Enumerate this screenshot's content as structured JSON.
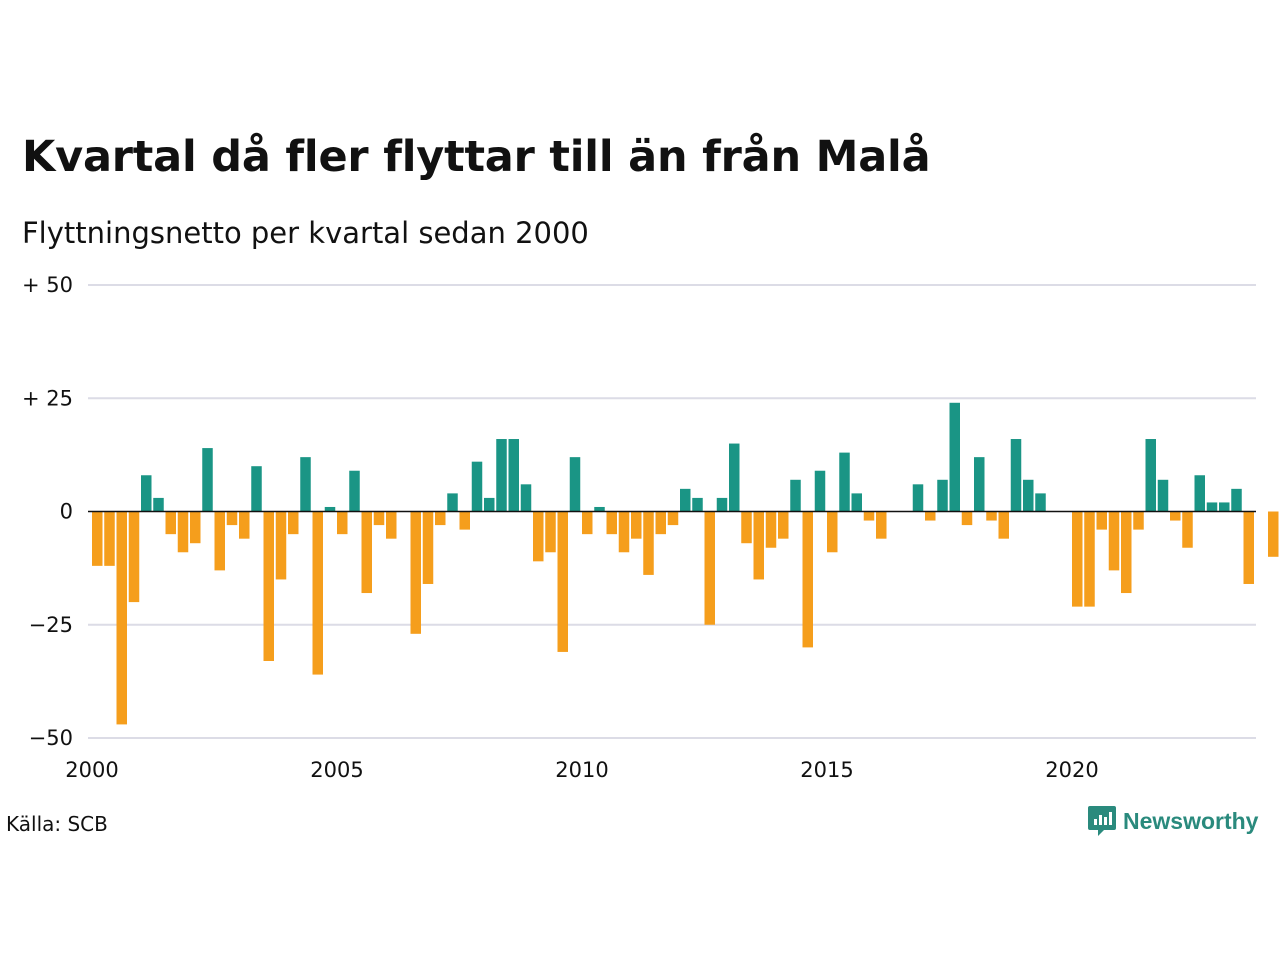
{
  "header": {
    "title": "Kvartal då fler flyttar till än från Malå",
    "subtitle": "Flyttningsnetto per kvartal sedan 2000"
  },
  "footer": {
    "source": "Källa: SCB",
    "brand": "Newsworthy",
    "brand_icon": "newsworthy-logo-icon"
  },
  "colors": {
    "positive": "#1a9585",
    "negative": "#f59e1c",
    "grid": "#dcdce6",
    "brand": "#2a8a7d"
  },
  "chart_data": {
    "type": "bar",
    "title": "Kvartal då fler flyttar till än från Malå",
    "subtitle": "Flyttningsnetto per kvartal sedan 2000",
    "ylim": [
      -50,
      50
    ],
    "yticks": [
      50,
      25,
      0,
      -25,
      -50
    ],
    "ytick_labels": [
      "+ 50",
      "+ 25",
      "0",
      "−25",
      "−50"
    ],
    "xticks": [
      2000,
      2005,
      2010,
      2015,
      2020
    ],
    "xtick_labels": [
      "2000",
      "2005",
      "2010",
      "2015",
      "2020"
    ],
    "grid": true,
    "start": "2000 Q1",
    "values": [
      -12,
      -12,
      -47,
      -20,
      8,
      3,
      -5,
      -9,
      -7,
      14,
      -13,
      -3,
      -6,
      10,
      -33,
      -15,
      -5,
      12,
      -36,
      1,
      -5,
      9,
      -18,
      -3,
      -6,
      0,
      -27,
      -16,
      -3,
      4,
      -4,
      11,
      3,
      16,
      16,
      6,
      -11,
      -9,
      -31,
      12,
      -5,
      1,
      -5,
      -9,
      -6,
      -14,
      -5,
      -3,
      5,
      3,
      -25,
      3,
      15,
      -7,
      -15,
      -8,
      -6,
      7,
      -30,
      9,
      -9,
      13,
      4,
      -2,
      -6,
      0,
      0,
      6,
      -2,
      7,
      24,
      -3,
      12,
      -2,
      -6,
      16,
      7,
      4,
      0,
      0,
      -21,
      -21,
      -4,
      -13,
      -18,
      -4,
      16,
      7,
      -2,
      -8,
      8,
      2,
      2,
      5,
      -16,
      0,
      -10
    ]
  }
}
